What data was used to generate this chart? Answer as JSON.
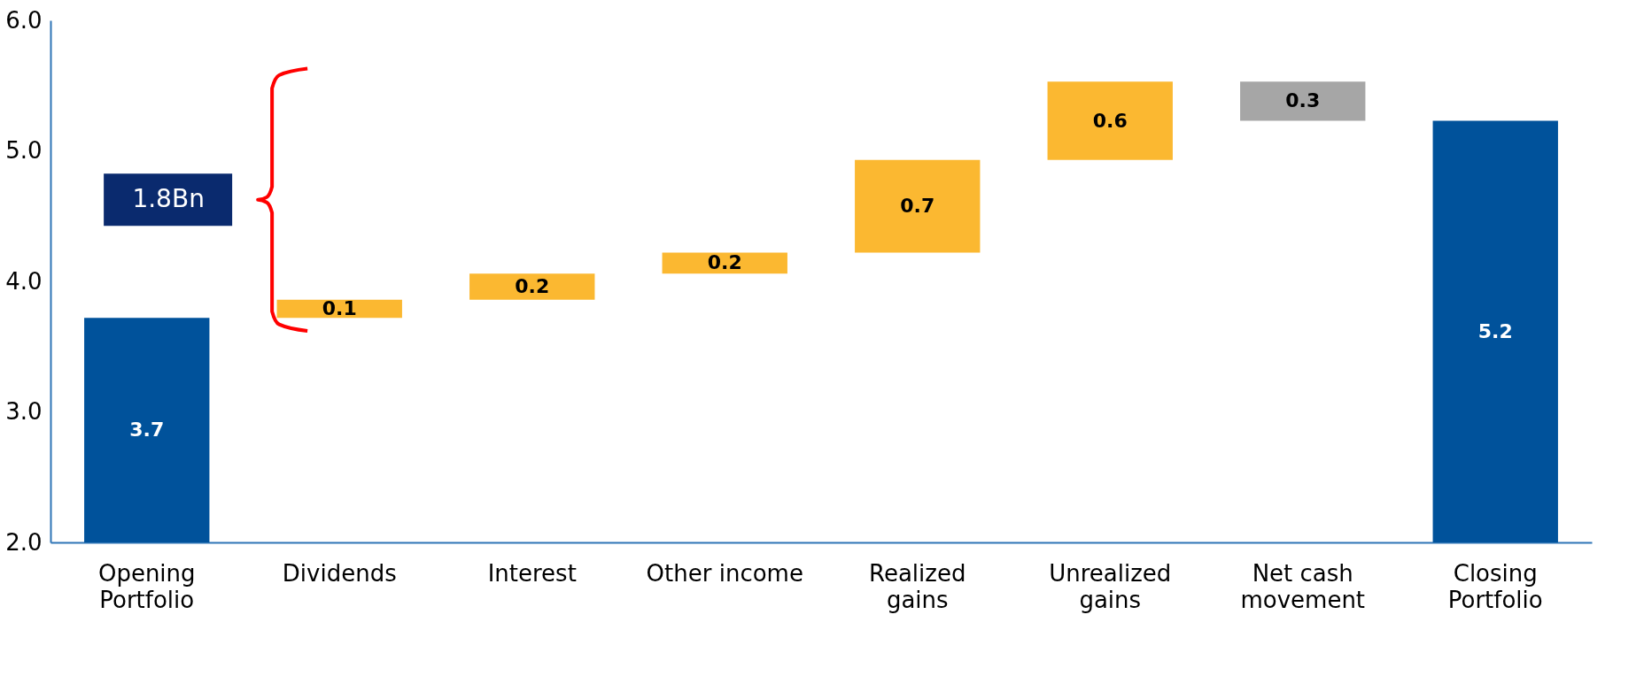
{
  "chart_data": {
    "type": "bar",
    "categories": [
      "Opening\nPortfolio",
      "Dividends",
      "Interest",
      "Other income",
      "Realized\ngains",
      "Unrealized\ngains",
      "Net cash\nmovement",
      "Closing\nPortfolio"
    ],
    "values": [
      3.72,
      0.14,
      0.2,
      0.16,
      0.71,
      0.6,
      -0.3,
      5.23
    ],
    "base": [
      0,
      3.72,
      3.86,
      4.06,
      4.22,
      4.93,
      5.53,
      0
    ],
    "colors": [
      "#00529b",
      "#fbb831",
      "#fbb831",
      "#fbb831",
      "#fbb831",
      "#fbb831",
      "#a6a6a6",
      "#00529b"
    ],
    "value_labels": [
      "3.7",
      "0.1",
      "0.2",
      "0.2",
      "0.7",
      "0.6",
      "0.3",
      "5.2"
    ],
    "ylim": [
      2.0,
      6.0
    ],
    "yticks": [
      {
        "value": 2,
        "label": "2.0"
      },
      {
        "value": 3,
        "label": "3.0"
      },
      {
        "value": 4,
        "label": "4.0"
      },
      {
        "value": 5,
        "label": "5.0"
      },
      {
        "value": 6,
        "label": "6.0"
      }
    ],
    "annotations": [
      "1.8Bn"
    ],
    "grid": false
  }
}
